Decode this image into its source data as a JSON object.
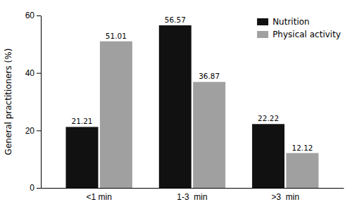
{
  "chart_data": {
    "type": "bar",
    "categories": [
      "<1 min",
      "1-3  min",
      ">3  min"
    ],
    "series": [
      {
        "name": "Nutrition",
        "color": "#111111",
        "values": [
          21.21,
          56.57,
          22.22
        ]
      },
      {
        "name": "Physical activity",
        "color": "#a0a0a0",
        "values": [
          51.01,
          36.87,
          12.12
        ]
      }
    ],
    "ylabel": "General practitioners (%)",
    "ylim": [
      0,
      60
    ],
    "yticks": [
      0,
      20,
      40,
      60
    ],
    "data_labels": true,
    "legend": "upper right",
    "grid": false
  }
}
